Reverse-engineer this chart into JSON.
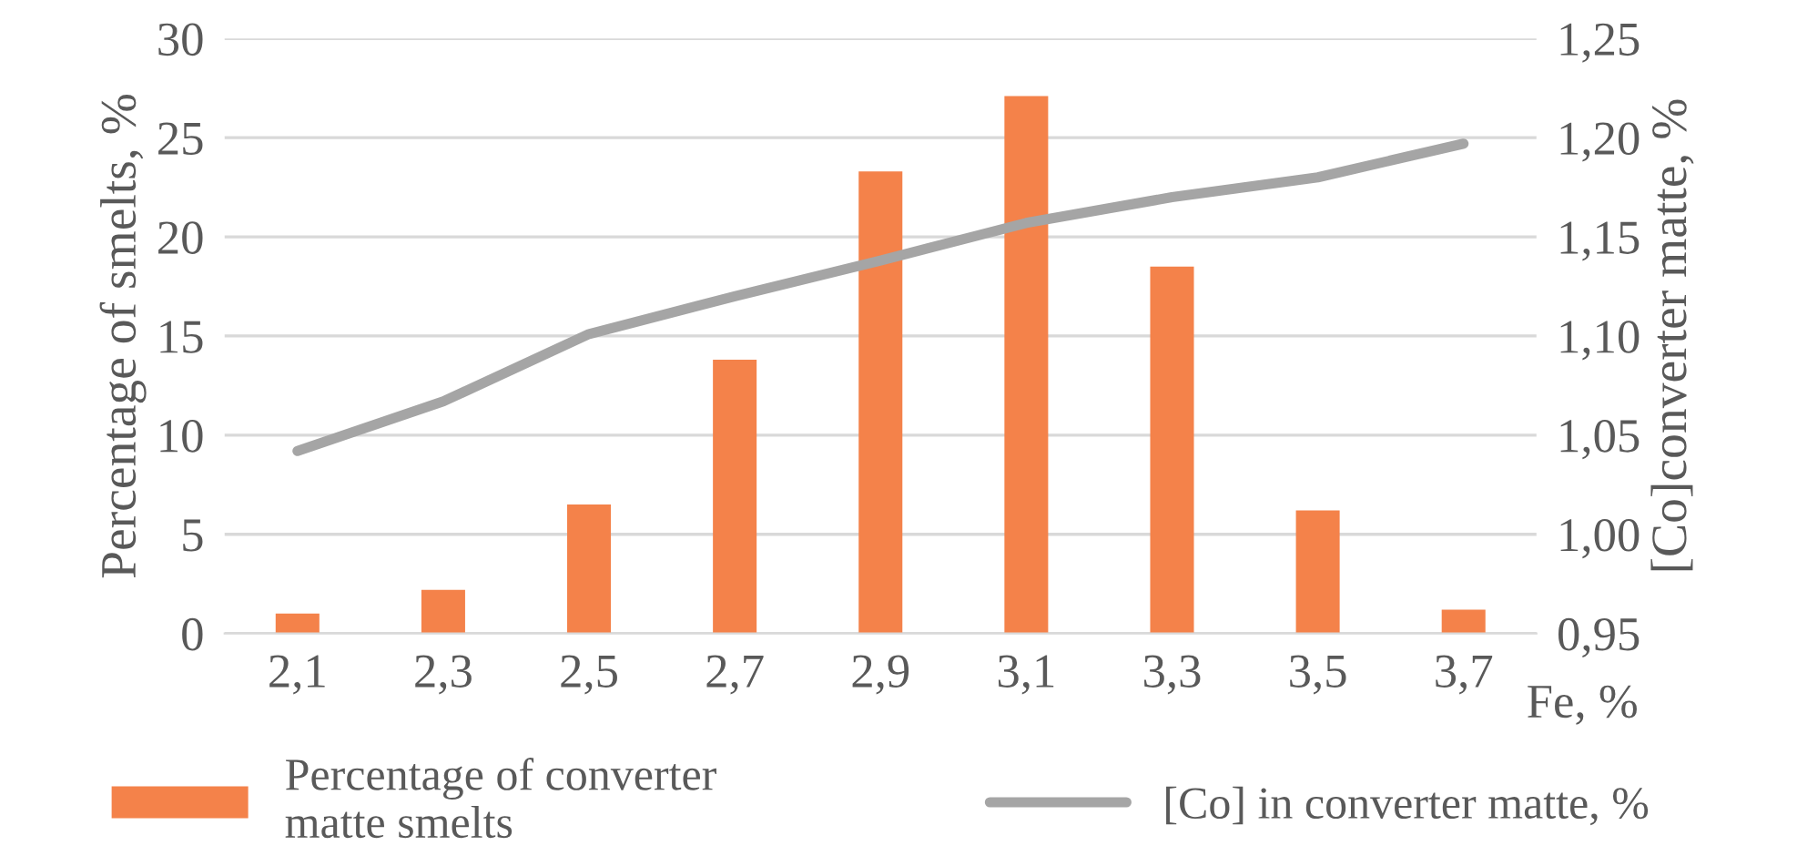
{
  "chart_data": {
    "type": "bar",
    "categories": [
      "2,1",
      "2,3",
      "2,5",
      "2,7",
      "2,9",
      "3,1",
      "3,3",
      "3,5",
      "3,7"
    ],
    "xlabel": "Fe, %",
    "ylabel": "Percentage of smelts, %",
    "y2label": "[Co]converter matte, %",
    "series": [
      {
        "name": "Percentage of converter\nmatte smelts",
        "color": "#f4824a",
        "values": [
          1.0,
          2.2,
          6.5,
          13.8,
          23.3,
          27.1,
          18.5,
          6.2,
          1.2
        ]
      },
      {
        "name": "[Co] in converter matte, %",
        "type": "line",
        "axis": "y2",
        "color": "#a5a5a5",
        "values": [
          1.042,
          1.067,
          1.101,
          1.12,
          1.138,
          1.157,
          1.17,
          1.18,
          1.197
        ]
      }
    ],
    "ylim": [
      0,
      30
    ],
    "yticks": [
      0,
      5,
      10,
      15,
      20,
      25,
      30
    ],
    "y2lim": [
      0.95,
      1.25
    ],
    "y2ticks": [
      {
        "value": 0.95,
        "label": "0,95"
      },
      {
        "value": 1.0,
        "label": "1,00"
      },
      {
        "value": 1.05,
        "label": "1,05"
      },
      {
        "value": 1.1,
        "label": "1,10"
      },
      {
        "value": 1.15,
        "label": "1,15"
      },
      {
        "value": 1.2,
        "label": "1,20"
      },
      {
        "value": 1.25,
        "label": "1,25"
      }
    ],
    "grid": "y",
    "legend": "bottom",
    "marker": "none",
    "line_style": "solid"
  }
}
